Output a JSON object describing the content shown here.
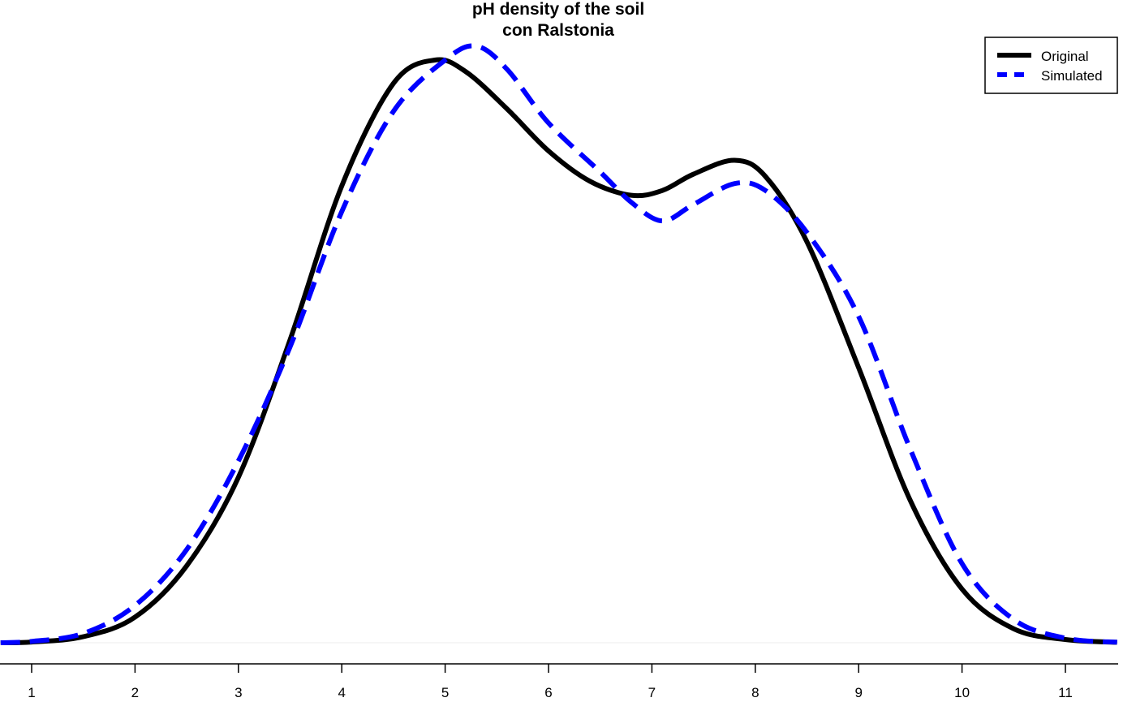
{
  "chart_data": {
    "type": "line",
    "title_line1": "pH density of the soil",
    "title_line2": "con Ralstonia",
    "xlabel": "",
    "ylabel": "",
    "xlim": [
      0.7,
      11.5
    ],
    "ylim": [
      0,
      0.285
    ],
    "x_ticks": [
      1,
      2,
      3,
      4,
      5,
      6,
      7,
      8,
      9,
      10,
      11
    ],
    "x_tick_labels": [
      "1",
      "2",
      "3",
      "4",
      "5",
      "6",
      "7",
      "8",
      "9",
      "10",
      "11"
    ],
    "legend_position": "top-right",
    "series": [
      {
        "name": "Original",
        "color": "#000000",
        "style": "solid",
        "x": [
          0.7,
          1.0,
          1.5,
          2.0,
          2.5,
          3.0,
          3.5,
          4.0,
          4.5,
          4.9,
          5.2,
          5.6,
          6.0,
          6.4,
          6.8,
          7.1,
          7.4,
          7.8,
          8.1,
          8.5,
          9.0,
          9.5,
          10.0,
          10.5,
          11.0,
          11.5
        ],
        "y": [
          0.0,
          0.0003,
          0.0026,
          0.011,
          0.033,
          0.071,
          0.13,
          0.196,
          0.24,
          0.25,
          0.245,
          0.229,
          0.211,
          0.198,
          0.192,
          0.194,
          0.201,
          0.207,
          0.2,
          0.172,
          0.118,
          0.061,
          0.023,
          0.006,
          0.0014,
          0.0002
        ]
      },
      {
        "name": "Simulated",
        "color": "#0000ff",
        "style": "dashed",
        "x": [
          0.7,
          1.0,
          1.5,
          2.0,
          2.5,
          3.0,
          3.5,
          4.0,
          4.5,
          5.0,
          5.3,
          5.6,
          6.0,
          6.5,
          6.8,
          7.1,
          7.4,
          7.8,
          8.1,
          8.5,
          9.0,
          9.5,
          10.0,
          10.5,
          11.0,
          11.5
        ],
        "y": [
          0.0,
          0.0006,
          0.004,
          0.016,
          0.04,
          0.078,
          0.127,
          0.185,
          0.228,
          0.25,
          0.256,
          0.246,
          0.223,
          0.202,
          0.189,
          0.181,
          0.188,
          0.197,
          0.194,
          0.176,
          0.14,
          0.083,
          0.034,
          0.01,
          0.002,
          0.0002
        ]
      }
    ]
  }
}
